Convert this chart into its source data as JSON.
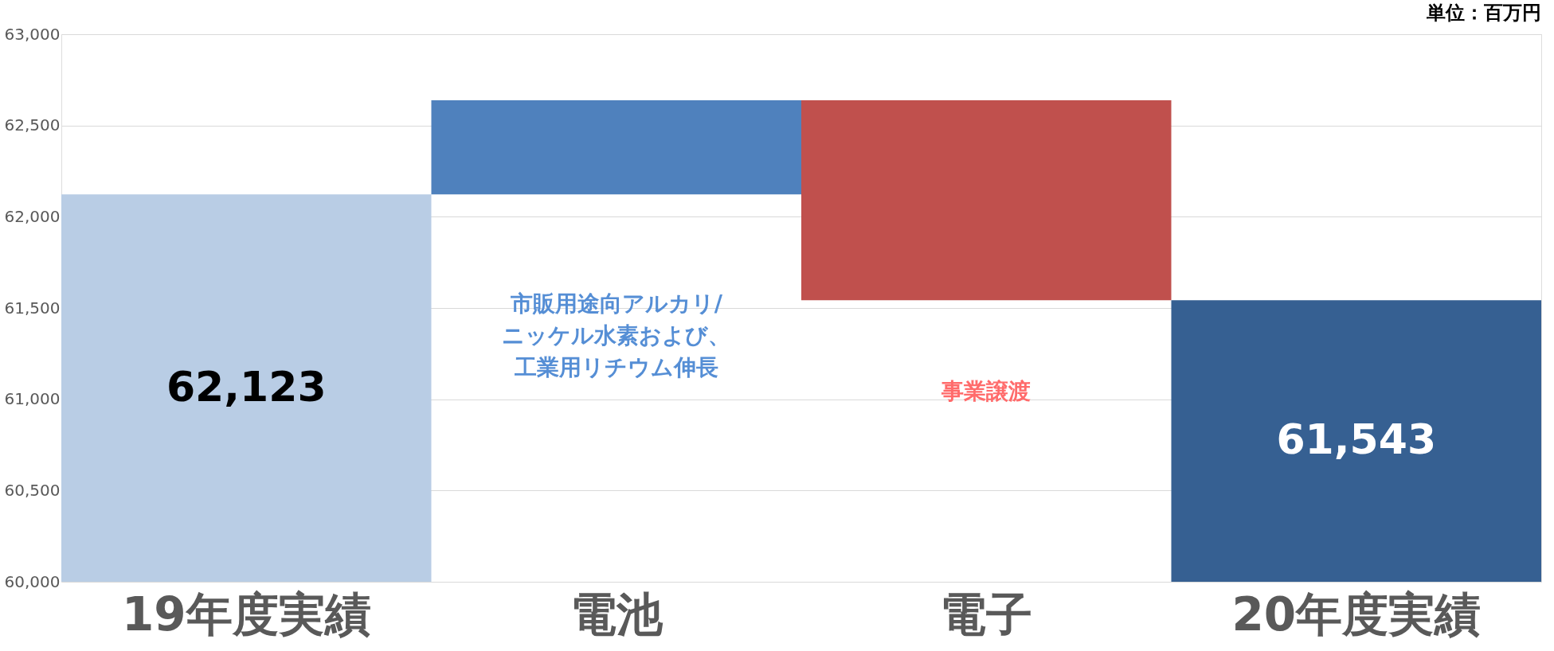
{
  "chart_data": {
    "type": "bar",
    "categories": [
      "19年度実績",
      "電池",
      "電子",
      "20年度実績"
    ],
    "base": [
      60000,
      62123,
      62638,
      60000
    ],
    "values": [
      2123,
      515,
      -1095,
      1543
    ],
    "colors": [
      "#b9cde5",
      "#4f81bd",
      "#c0504d",
      "#366092"
    ],
    "value_labels": [
      "62,123",
      null,
      null,
      "61,543"
    ],
    "ylim": [
      60000,
      63000
    ],
    "yticks": [
      {
        "value": 60000,
        "label": "60,000"
      },
      {
        "value": 60500,
        "label": "60,500"
      },
      {
        "value": 61000,
        "label": "61,000"
      },
      {
        "value": 61500,
        "label": "61,500"
      },
      {
        "value": 62000,
        "label": "62,000"
      },
      {
        "value": 62500,
        "label": "62,500"
      },
      {
        "value": 63000,
        "label": "63,000"
      }
    ],
    "grid": "y",
    "annotations": [
      "単位：百万円",
      "市販用途向アルカリ/ニッケル水素および、工業用リチウム伸長",
      "事業譲渡"
    ]
  }
}
